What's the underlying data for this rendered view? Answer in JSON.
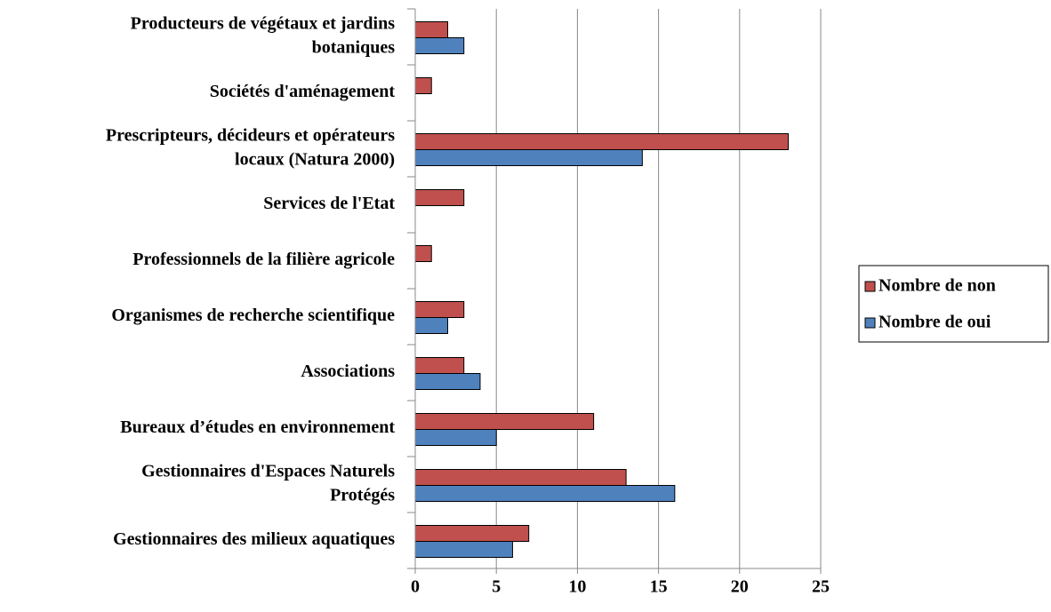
{
  "chart_data": {
    "type": "barh",
    "categories": [
      [
        "Producteurs de végétaux et jardins",
        "botaniques"
      ],
      [
        "Sociétés d'aménagement"
      ],
      [
        "Prescripteurs, décideurs et opérateurs",
        "locaux (Natura 2000)"
      ],
      [
        "Services de l'Etat"
      ],
      [
        "Professionnels de la filière agricole"
      ],
      [
        "Organismes de recherche scientifique"
      ],
      [
        "Associations"
      ],
      [
        "Bureaux d’études en environnement"
      ],
      [
        "Gestionnaires d'Espaces Naturels",
        "Protégés"
      ],
      [
        "Gestionnaires des milieux aquatiques"
      ]
    ],
    "series": [
      {
        "name": "Nombre de non",
        "color": "#c0504d",
        "values": [
          2,
          1,
          23,
          3,
          1,
          3,
          3,
          11,
          13,
          7
        ]
      },
      {
        "name": "Nombre de oui",
        "color": "#4f81bd",
        "values": [
          3,
          0,
          14,
          0,
          0,
          2,
          4,
          5,
          16,
          6
        ]
      }
    ],
    "xlim": [
      0,
      25
    ],
    "xticks": [
      0,
      5,
      10,
      15,
      20,
      25
    ],
    "grid": true,
    "legend": "right"
  }
}
